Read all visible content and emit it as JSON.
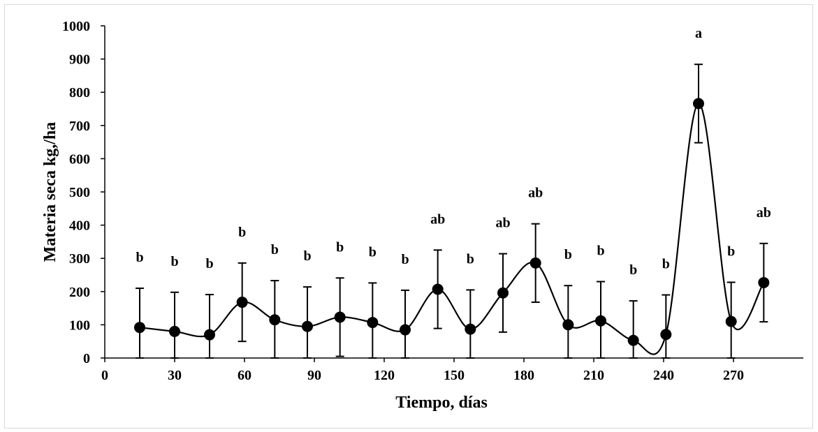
{
  "chart_data": {
    "type": "line",
    "title": "",
    "xlabel": "Tiempo, días",
    "ylabel": "Materia seca kg,/ha",
    "xlim": [
      0,
      300
    ],
    "ylim": [
      0,
      1000
    ],
    "xticks": [
      0,
      30,
      60,
      90,
      120,
      150,
      180,
      210,
      240,
      270
    ],
    "yticks": [
      0,
      100,
      200,
      300,
      400,
      500,
      600,
      700,
      800,
      900,
      1000
    ],
    "smooth": true,
    "grid": false,
    "legend": "none",
    "colors": {
      "line": "#000000",
      "marker": "#000000"
    },
    "series": [
      {
        "x": [
          15,
          30,
          45,
          59,
          73,
          87,
          101,
          115,
          129,
          143,
          157,
          171,
          185,
          199,
          213,
          227,
          241,
          255,
          269,
          283
        ],
        "y": [
          92,
          80,
          70,
          168,
          115,
          95,
          123,
          107,
          85,
          207,
          87,
          196,
          286,
          100,
          112,
          53,
          71,
          766,
          110,
          227
        ],
        "error_high": [
          210,
          198,
          191,
          286,
          233,
          214,
          241,
          226,
          204,
          325,
          205,
          314,
          404,
          218,
          230,
          172,
          190,
          884,
          228,
          345
        ],
        "error_low": [
          0,
          0,
          0,
          50,
          0,
          0,
          5,
          0,
          0,
          89,
          0,
          78,
          168,
          0,
          0,
          0,
          0,
          648,
          0,
          109
        ],
        "significance": [
          "b",
          "b",
          "b",
          "b",
          "b",
          "b",
          "b",
          "b",
          "b",
          "ab",
          "b",
          "ab",
          "ab",
          "b",
          "b",
          "b",
          "b",
          "a",
          "b",
          "ab"
        ]
      }
    ]
  }
}
